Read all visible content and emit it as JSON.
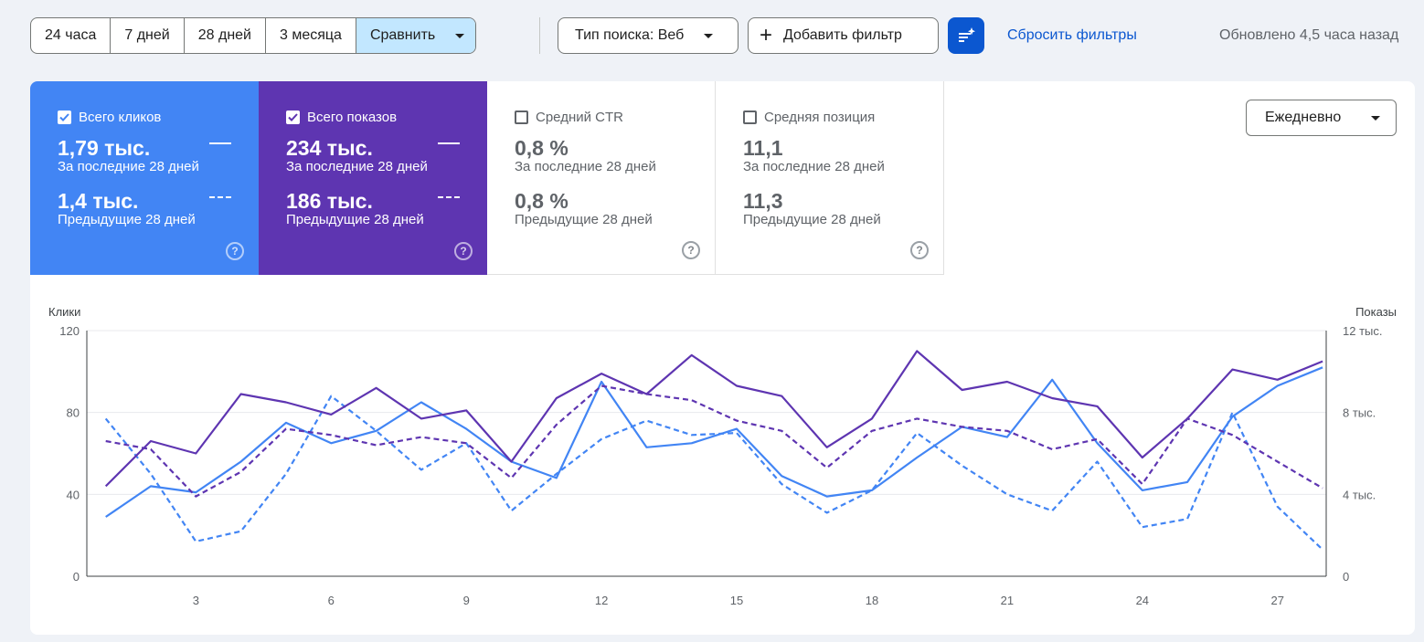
{
  "toolbar": {
    "ranges": [
      "24 часа",
      "7 дней",
      "28 дней",
      "3 месяца"
    ],
    "compare_label": "Сравнить",
    "search_type_label": "Тип поиска: Веб",
    "add_filter_label": "Добавить фильтр",
    "reset_label": "Сбросить фильтры",
    "updated_text": "Обновлено 4,5 часа назад"
  },
  "metrics": [
    {
      "label": "Всего кликов",
      "checked": true,
      "current": "1,79 тыс.",
      "current_period": "За последние 28 дней",
      "previous": "1,4 тыс.",
      "previous_period": "Предыдущие 28 дней",
      "color": "#4285f4"
    },
    {
      "label": "Всего показов",
      "checked": true,
      "current": "234 тыс.",
      "current_period": "За последние 28 дней",
      "previous": "186 тыс.",
      "previous_period": "Предыдущие 28 дней",
      "color": "#5e35b1"
    },
    {
      "label": "Средний CTR",
      "checked": false,
      "current": "0,8 %",
      "current_period": "За последние 28 дней",
      "previous": "0,8 %",
      "previous_period": "Предыдущие 28 дней"
    },
    {
      "label": "Средняя позиция",
      "checked": false,
      "current": "11,1",
      "current_period": "За последние 28 дней",
      "previous": "11,3",
      "previous_period": "Предыдущие 28 дней"
    }
  ],
  "granularity_label": "Ежедневно",
  "chart_data": {
    "type": "line",
    "left_axis_label": "Клики",
    "right_axis_label": "Показы",
    "left_ticks": [
      "0",
      "40",
      "80",
      "120"
    ],
    "right_ticks": [
      "0",
      "4 тыс.",
      "8 тыс.",
      "12 тыс."
    ],
    "ylim_left": [
      0,
      120
    ],
    "ylim_right": [
      0,
      12000
    ],
    "x": [
      1,
      2,
      3,
      4,
      5,
      6,
      7,
      8,
      9,
      10,
      11,
      12,
      13,
      14,
      15,
      16,
      17,
      18,
      19,
      20,
      21,
      22,
      23,
      24,
      25,
      26,
      27,
      28
    ],
    "x_ticks": [
      "3",
      "6",
      "9",
      "12",
      "15",
      "18",
      "21",
      "24",
      "27"
    ],
    "x_tick_values": [
      3,
      6,
      9,
      12,
      15,
      18,
      21,
      24,
      27
    ],
    "grid": true,
    "series": [
      {
        "axis": "left",
        "style": "solid",
        "color": "#4285f4",
        "values": [
          29,
          44,
          41,
          56,
          75,
          65,
          71,
          85,
          72,
          56,
          48,
          95,
          63,
          65,
          72,
          49,
          39,
          42,
          58,
          73,
          68,
          96,
          65,
          42,
          46,
          78,
          93,
          102
        ]
      },
      {
        "axis": "left",
        "style": "dashed",
        "color": "#4285f4",
        "values": [
          77,
          50,
          17,
          22,
          50,
          88,
          71,
          52,
          65,
          32,
          50,
          67,
          76,
          69,
          70,
          45,
          31,
          42,
          70,
          54,
          40,
          32,
          56,
          24,
          28,
          80,
          34,
          13
        ]
      },
      {
        "axis": "right",
        "style": "solid",
        "color": "#5e35b1",
        "values": [
          4400,
          6600,
          6000,
          8900,
          8500,
          7900,
          9200,
          7700,
          8100,
          5600,
          8700,
          9900,
          8900,
          10800,
          9300,
          8800,
          6300,
          7700,
          11000,
          9100,
          9500,
          8700,
          8300,
          5800,
          7700,
          10100,
          9600,
          10500
        ]
      },
      {
        "axis": "right",
        "style": "dashed",
        "color": "#5e35b1",
        "values": [
          6600,
          6200,
          3900,
          5100,
          7200,
          6900,
          6400,
          6800,
          6500,
          4800,
          7400,
          9300,
          8900,
          8600,
          7600,
          7100,
          5300,
          7100,
          7700,
          7300,
          7100,
          6200,
          6700,
          4500,
          7700,
          6900,
          5600,
          4300
        ]
      }
    ]
  }
}
